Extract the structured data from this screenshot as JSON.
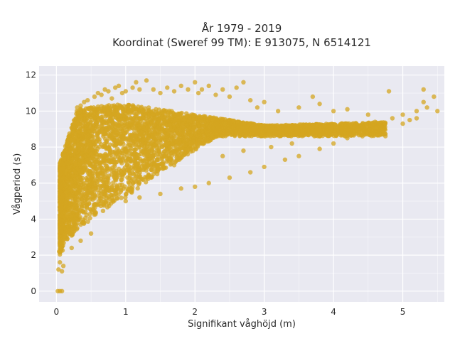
{
  "chart_data": {
    "type": "scatter",
    "title": "År 1979 - 2019",
    "subtitle": "Koordinat (Sweref 99 TM): E 913075, N 6514121",
    "xlabel": "Signifikant våghöjd (m)",
    "ylabel": "Vågperiod (s)",
    "xlim": [
      -0.25,
      5.6
    ],
    "ylim": [
      -0.6,
      12.5
    ],
    "x_ticks": [
      0,
      1,
      2,
      3,
      4,
      5
    ],
    "y_ticks": [
      0,
      2,
      4,
      6,
      8,
      10,
      12
    ],
    "x_tick_labels": [
      "0",
      "1",
      "2",
      "3",
      "4",
      "5"
    ],
    "y_tick_labels": [
      "0",
      "2",
      "4",
      "6",
      "8",
      "10",
      "12"
    ],
    "grid": true,
    "legend": false,
    "colors": {
      "marker": "#D4A520",
      "plot_background": "#E9E9F1",
      "grid": "#FFFFFF"
    },
    "series": [
      {
        "points": [
          [
            0.02,
            0.0
          ],
          [
            0.05,
            0.0
          ],
          [
            0.08,
            0.0
          ],
          [
            0.03,
            1.2
          ],
          [
            0.05,
            1.6
          ],
          [
            0.08,
            1.1
          ],
          [
            0.1,
            1.4
          ],
          [
            0.04,
            2.2
          ],
          [
            0.06,
            3.0
          ],
          [
            0.08,
            4.2
          ],
          [
            0.05,
            5.0
          ],
          [
            0.07,
            6.2
          ],
          [
            0.1,
            6.8
          ],
          [
            0.12,
            7.5
          ],
          [
            0.15,
            8.2
          ],
          [
            0.18,
            8.6
          ],
          [
            0.2,
            3.2
          ],
          [
            0.22,
            2.4
          ],
          [
            0.25,
            9.0
          ],
          [
            0.3,
            10.2
          ],
          [
            0.35,
            10.3
          ],
          [
            0.4,
            10.5
          ],
          [
            0.45,
            10.6
          ],
          [
            0.3,
            3.5
          ],
          [
            0.35,
            2.8
          ],
          [
            0.4,
            3.8
          ],
          [
            0.5,
            3.2
          ],
          [
            0.55,
            10.8
          ],
          [
            0.6,
            11.0
          ],
          [
            0.65,
            10.9
          ],
          [
            0.7,
            11.2
          ],
          [
            0.75,
            11.1
          ],
          [
            0.8,
            10.7
          ],
          [
            0.85,
            11.3
          ],
          [
            0.9,
            11.4
          ],
          [
            0.95,
            11.0
          ],
          [
            1.0,
            11.1
          ],
          [
            1.1,
            11.3
          ],
          [
            1.15,
            11.6
          ],
          [
            1.2,
            11.2
          ],
          [
            1.3,
            11.7
          ],
          [
            1.4,
            11.2
          ],
          [
            1.5,
            11.0
          ],
          [
            1.6,
            11.3
          ],
          [
            1.7,
            11.1
          ],
          [
            1.8,
            11.4
          ],
          [
            1.9,
            11.2
          ],
          [
            2.0,
            11.6
          ],
          [
            2.05,
            11.0
          ],
          [
            2.1,
            11.2
          ],
          [
            2.2,
            11.4
          ],
          [
            2.3,
            10.9
          ],
          [
            2.4,
            11.2
          ],
          [
            2.5,
            10.8
          ],
          [
            2.6,
            11.3
          ],
          [
            2.7,
            11.6
          ],
          [
            2.8,
            10.6
          ],
          [
            2.9,
            10.2
          ],
          [
            3.0,
            10.5
          ],
          [
            3.2,
            10.0
          ],
          [
            3.5,
            10.2
          ],
          [
            3.7,
            10.8
          ],
          [
            3.8,
            10.4
          ],
          [
            4.0,
            10.0
          ],
          [
            4.2,
            10.1
          ],
          [
            4.5,
            9.8
          ],
          [
            1.0,
            5.0
          ],
          [
            1.2,
            5.2
          ],
          [
            1.5,
            5.4
          ],
          [
            1.8,
            5.7
          ],
          [
            2.0,
            5.8
          ],
          [
            2.2,
            6.0
          ],
          [
            2.5,
            6.3
          ],
          [
            2.8,
            6.6
          ],
          [
            3.0,
            6.9
          ],
          [
            3.3,
            7.3
          ],
          [
            3.5,
            7.5
          ],
          [
            3.8,
            7.9
          ],
          [
            4.0,
            8.2
          ],
          [
            4.2,
            8.5
          ],
          [
            4.5,
            8.8
          ],
          [
            4.7,
            9.0
          ],
          [
            5.0,
            9.3
          ],
          [
            5.2,
            9.6
          ],
          [
            5.0,
            9.8
          ],
          [
            5.1,
            9.5
          ],
          [
            5.2,
            10.0
          ],
          [
            5.3,
            10.5
          ],
          [
            5.35,
            10.2
          ],
          [
            5.45,
            10.8
          ],
          [
            5.5,
            10.0
          ],
          [
            4.8,
            11.1
          ],
          [
            5.3,
            11.2
          ],
          [
            3.8,
            8.6
          ],
          [
            4.1,
            8.8
          ],
          [
            4.3,
            9.1
          ],
          [
            4.6,
            9.4
          ],
          [
            4.85,
            9.6
          ],
          [
            0.5,
            4.5
          ],
          [
            0.6,
            4.8
          ],
          [
            0.7,
            5.0
          ],
          [
            0.8,
            5.2
          ],
          [
            1.4,
            6.5
          ],
          [
            1.7,
            7.0
          ],
          [
            2.4,
            7.5
          ],
          [
            2.7,
            7.8
          ],
          [
            3.1,
            8.0
          ],
          [
            3.4,
            8.2
          ]
        ]
      }
    ]
  }
}
